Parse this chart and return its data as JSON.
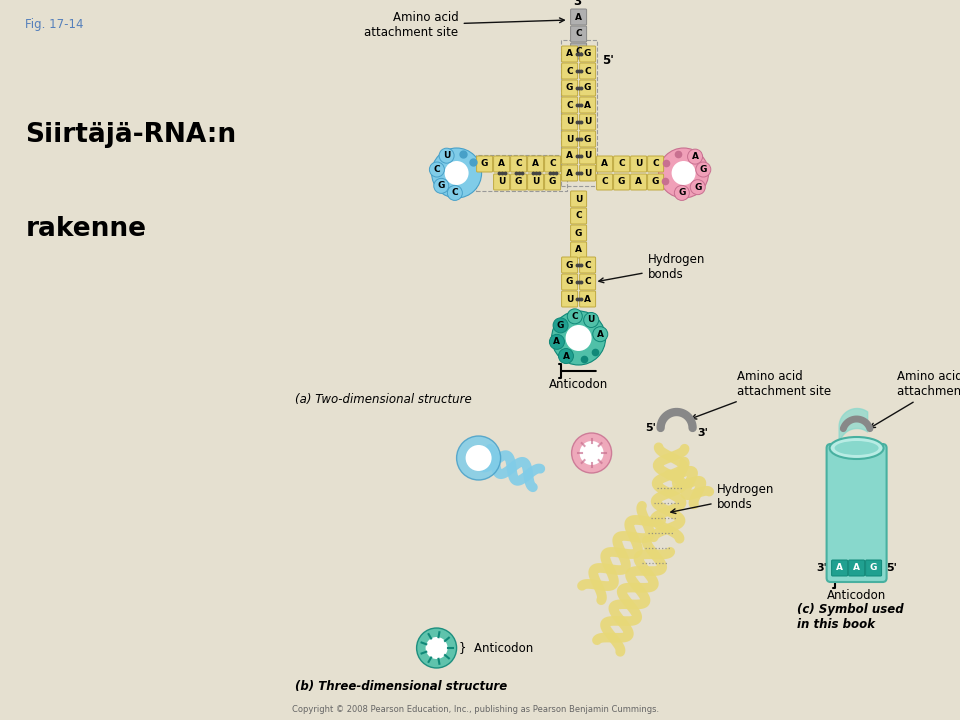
{
  "bg_color": "#e5e0d0",
  "white_color": "#ffffff",
  "fig_label": "Fig. 17-14",
  "title1": "Siirtäjä-RNA:n",
  "title2": "rakenne",
  "label_a": "(a) Two-dimensional structure",
  "label_b": "(b) Three-dimensional structure",
  "label_c": "(c) Symbol used\nin this book",
  "copyright": "Copyright © 2008 Pearson Education, Inc., publishing as Pearson Benjamin Cummings.",
  "colors": {
    "yellow": "#e8d878",
    "yellow_edge": "#c0aa40",
    "gray_nt": "#b0b0b0",
    "gray_edge": "#888888",
    "blue": "#80cce8",
    "blue_edge": "#48a0c8",
    "pink": "#f0a0b8",
    "pink_edge": "#c87090",
    "teal": "#50c0a8",
    "teal_dark": "#20a090",
    "teal_edge": "#108878",
    "tube_body": "#88d8cc",
    "tube_top": "#b8ece4",
    "tube_edge": "#48b0a0",
    "tube_dark": "#20a090",
    "dot": "#444444",
    "text": "#111111",
    "gray_text": "#666666",
    "arrow": "#111111"
  }
}
